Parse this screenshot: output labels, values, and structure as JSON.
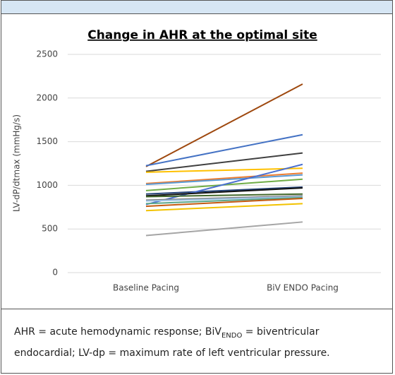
{
  "chart_data": {
    "type": "line",
    "title": "Change in AHR at the optimal site",
    "y_label": "LV-dP/dtmax  (mmHg/s)",
    "categories": [
      "Baseline Pacing",
      "BiV ENDO Pacing"
    ],
    "ylim": [
      0,
      2500
    ],
    "yticks": [
      0,
      500,
      1000,
      1500,
      2000,
      2500
    ],
    "grid": true,
    "series": [
      {
        "color": "#9e480e",
        "values": [
          1215,
          2160
        ]
      },
      {
        "color": "#4472c4",
        "values": [
          1225,
          1580
        ]
      },
      {
        "color": "#404040",
        "values": [
          1160,
          1370
        ]
      },
      {
        "color": "#ffc000",
        "values": [
          1150,
          1195
        ]
      },
      {
        "color": "#ed7d31",
        "values": [
          1020,
          1140
        ]
      },
      {
        "color": "#5b9bd5",
        "values": [
          1010,
          1120
        ]
      },
      {
        "color": "#70ad47",
        "values": [
          940,
          1070
        ]
      },
      {
        "color": "#264478",
        "values": [
          900,
          980
        ]
      },
      {
        "color": "#4a6fd0",
        "values": [
          780,
          1240
        ]
      },
      {
        "color": "#111111",
        "values": [
          880,
          970
        ]
      },
      {
        "color": "#43682b",
        "values": [
          870,
          900
        ]
      },
      {
        "color": "#7f7f7f",
        "values": [
          830,
          880
        ]
      },
      {
        "color": "#9dc3e6",
        "values": [
          820,
          870
        ]
      },
      {
        "color": "#5aa68a",
        "values": [
          790,
          860
        ]
      },
      {
        "color": "#c55a11",
        "values": [
          760,
          850
        ]
      },
      {
        "color": "#f2c200",
        "values": [
          710,
          790
        ]
      },
      {
        "color": "#a5a5a5",
        "values": [
          425,
          580
        ]
      }
    ]
  },
  "caption": {
    "segments": [
      "AHR = acute hemodynamic response; BiV",
      "ENDO",
      " = biventricular endocardial; LV-dp = maximum rate of left ventricular pressure."
    ]
  }
}
